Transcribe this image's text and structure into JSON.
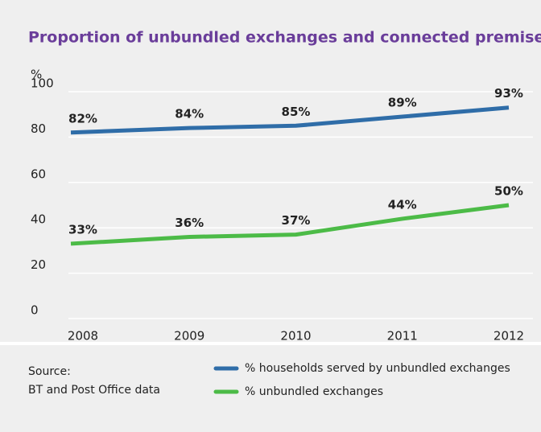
{
  "chart_data": {
    "type": "line",
    "title": "Proportion of unbundled exchanges and connected premises",
    "y_label": "%",
    "categories": [
      "2008",
      "2009",
      "2010",
      "2011",
      "2012"
    ],
    "series": [
      {
        "name": "% households served by unbundled exchanges",
        "color": "#2f6da8",
        "values": [
          82,
          84,
          85,
          89,
          93
        ],
        "value_labels": [
          "82%",
          "84%",
          "85%",
          "89%",
          "93%"
        ]
      },
      {
        "name": "% unbundled exchanges",
        "color": "#4cbb47",
        "values": [
          33,
          36,
          37,
          44,
          50
        ],
        "value_labels": [
          "33%",
          "36%",
          "37%",
          "44%",
          "50%"
        ]
      }
    ],
    "ylim": [
      0,
      100
    ],
    "yticks": [
      0,
      20,
      40,
      60,
      80,
      100
    ],
    "grid": true,
    "source": [
      "Source:",
      "BT and Post Office data"
    ]
  }
}
